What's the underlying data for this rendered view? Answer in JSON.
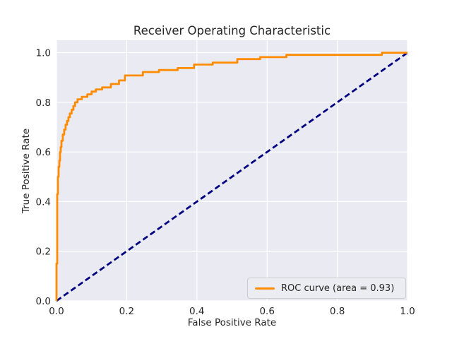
{
  "colors": {
    "figure_bg": "#ffffff",
    "plot_bg": "#eaeaf2",
    "grid": "#ffffff",
    "text": "#262626",
    "legend_bg": "#ececf3",
    "legend_border": "#cccccc"
  },
  "chart_data": {
    "type": "line",
    "title": "Receiver Operating Characteristic",
    "xlabel": "False Positive Rate",
    "ylabel": "True Positive Rate",
    "xlim": [
      0.0,
      1.0
    ],
    "ylim": [
      0.0,
      1.05
    ],
    "x_tick_labels": [
      "0.0",
      "0.2",
      "0.4",
      "0.6",
      "0.8",
      "1.0"
    ],
    "x_tick_values": [
      0.0,
      0.2,
      0.4,
      0.6,
      0.8,
      1.0
    ],
    "y_tick_labels": [
      "0.0",
      "0.2",
      "0.4",
      "0.6",
      "0.8",
      "1.0"
    ],
    "y_tick_values": [
      0.0,
      0.2,
      0.4,
      0.6,
      0.8,
      1.0
    ],
    "grid": true,
    "legend_position": "lower right",
    "auc": 0.93,
    "series": [
      {
        "name": "ROC curve (area = 0.93)",
        "color": "#ff8c00",
        "style": "solid",
        "line_width": 2.8,
        "in_legend": true,
        "points": [
          [
            0.0,
            0.0
          ],
          [
            0.0,
            0.15
          ],
          [
            0.002,
            0.15
          ],
          [
            0.002,
            0.43
          ],
          [
            0.004,
            0.43
          ],
          [
            0.004,
            0.5
          ],
          [
            0.006,
            0.5
          ],
          [
            0.006,
            0.54
          ],
          [
            0.008,
            0.54
          ],
          [
            0.008,
            0.565
          ],
          [
            0.01,
            0.565
          ],
          [
            0.01,
            0.6
          ],
          [
            0.012,
            0.6
          ],
          [
            0.012,
            0.62
          ],
          [
            0.014,
            0.62
          ],
          [
            0.014,
            0.645
          ],
          [
            0.018,
            0.645
          ],
          [
            0.018,
            0.67
          ],
          [
            0.022,
            0.67
          ],
          [
            0.022,
            0.69
          ],
          [
            0.026,
            0.69
          ],
          [
            0.026,
            0.71
          ],
          [
            0.03,
            0.71
          ],
          [
            0.03,
            0.725
          ],
          [
            0.034,
            0.725
          ],
          [
            0.034,
            0.74
          ],
          [
            0.038,
            0.74
          ],
          [
            0.038,
            0.755
          ],
          [
            0.043,
            0.755
          ],
          [
            0.043,
            0.77
          ],
          [
            0.048,
            0.77
          ],
          [
            0.048,
            0.785
          ],
          [
            0.053,
            0.785
          ],
          [
            0.053,
            0.8
          ],
          [
            0.06,
            0.8
          ],
          [
            0.06,
            0.812
          ],
          [
            0.072,
            0.812
          ],
          [
            0.072,
            0.822
          ],
          [
            0.088,
            0.822
          ],
          [
            0.088,
            0.832
          ],
          [
            0.1,
            0.832
          ],
          [
            0.1,
            0.843
          ],
          [
            0.112,
            0.843
          ],
          [
            0.112,
            0.852
          ],
          [
            0.13,
            0.852
          ],
          [
            0.13,
            0.86
          ],
          [
            0.155,
            0.86
          ],
          [
            0.155,
            0.874
          ],
          [
            0.178,
            0.874
          ],
          [
            0.178,
            0.888
          ],
          [
            0.195,
            0.888
          ],
          [
            0.195,
            0.908
          ],
          [
            0.246,
            0.908
          ],
          [
            0.246,
            0.922
          ],
          [
            0.292,
            0.922
          ],
          [
            0.292,
            0.93
          ],
          [
            0.345,
            0.93
          ],
          [
            0.345,
            0.938
          ],
          [
            0.392,
            0.938
          ],
          [
            0.392,
            0.952
          ],
          [
            0.445,
            0.952
          ],
          [
            0.445,
            0.96
          ],
          [
            0.515,
            0.96
          ],
          [
            0.515,
            0.974
          ],
          [
            0.58,
            0.974
          ],
          [
            0.58,
            0.982
          ],
          [
            0.655,
            0.982
          ],
          [
            0.655,
            0.991
          ],
          [
            0.927,
            0.991
          ],
          [
            0.927,
            1.0
          ],
          [
            1.0,
            1.0
          ]
        ]
      },
      {
        "name": "chance-diagonal",
        "color": "#000080",
        "style": "dashed",
        "line_width": 2.8,
        "in_legend": false,
        "points": [
          [
            0.0,
            0.0
          ],
          [
            1.0,
            1.0
          ]
        ]
      }
    ]
  }
}
